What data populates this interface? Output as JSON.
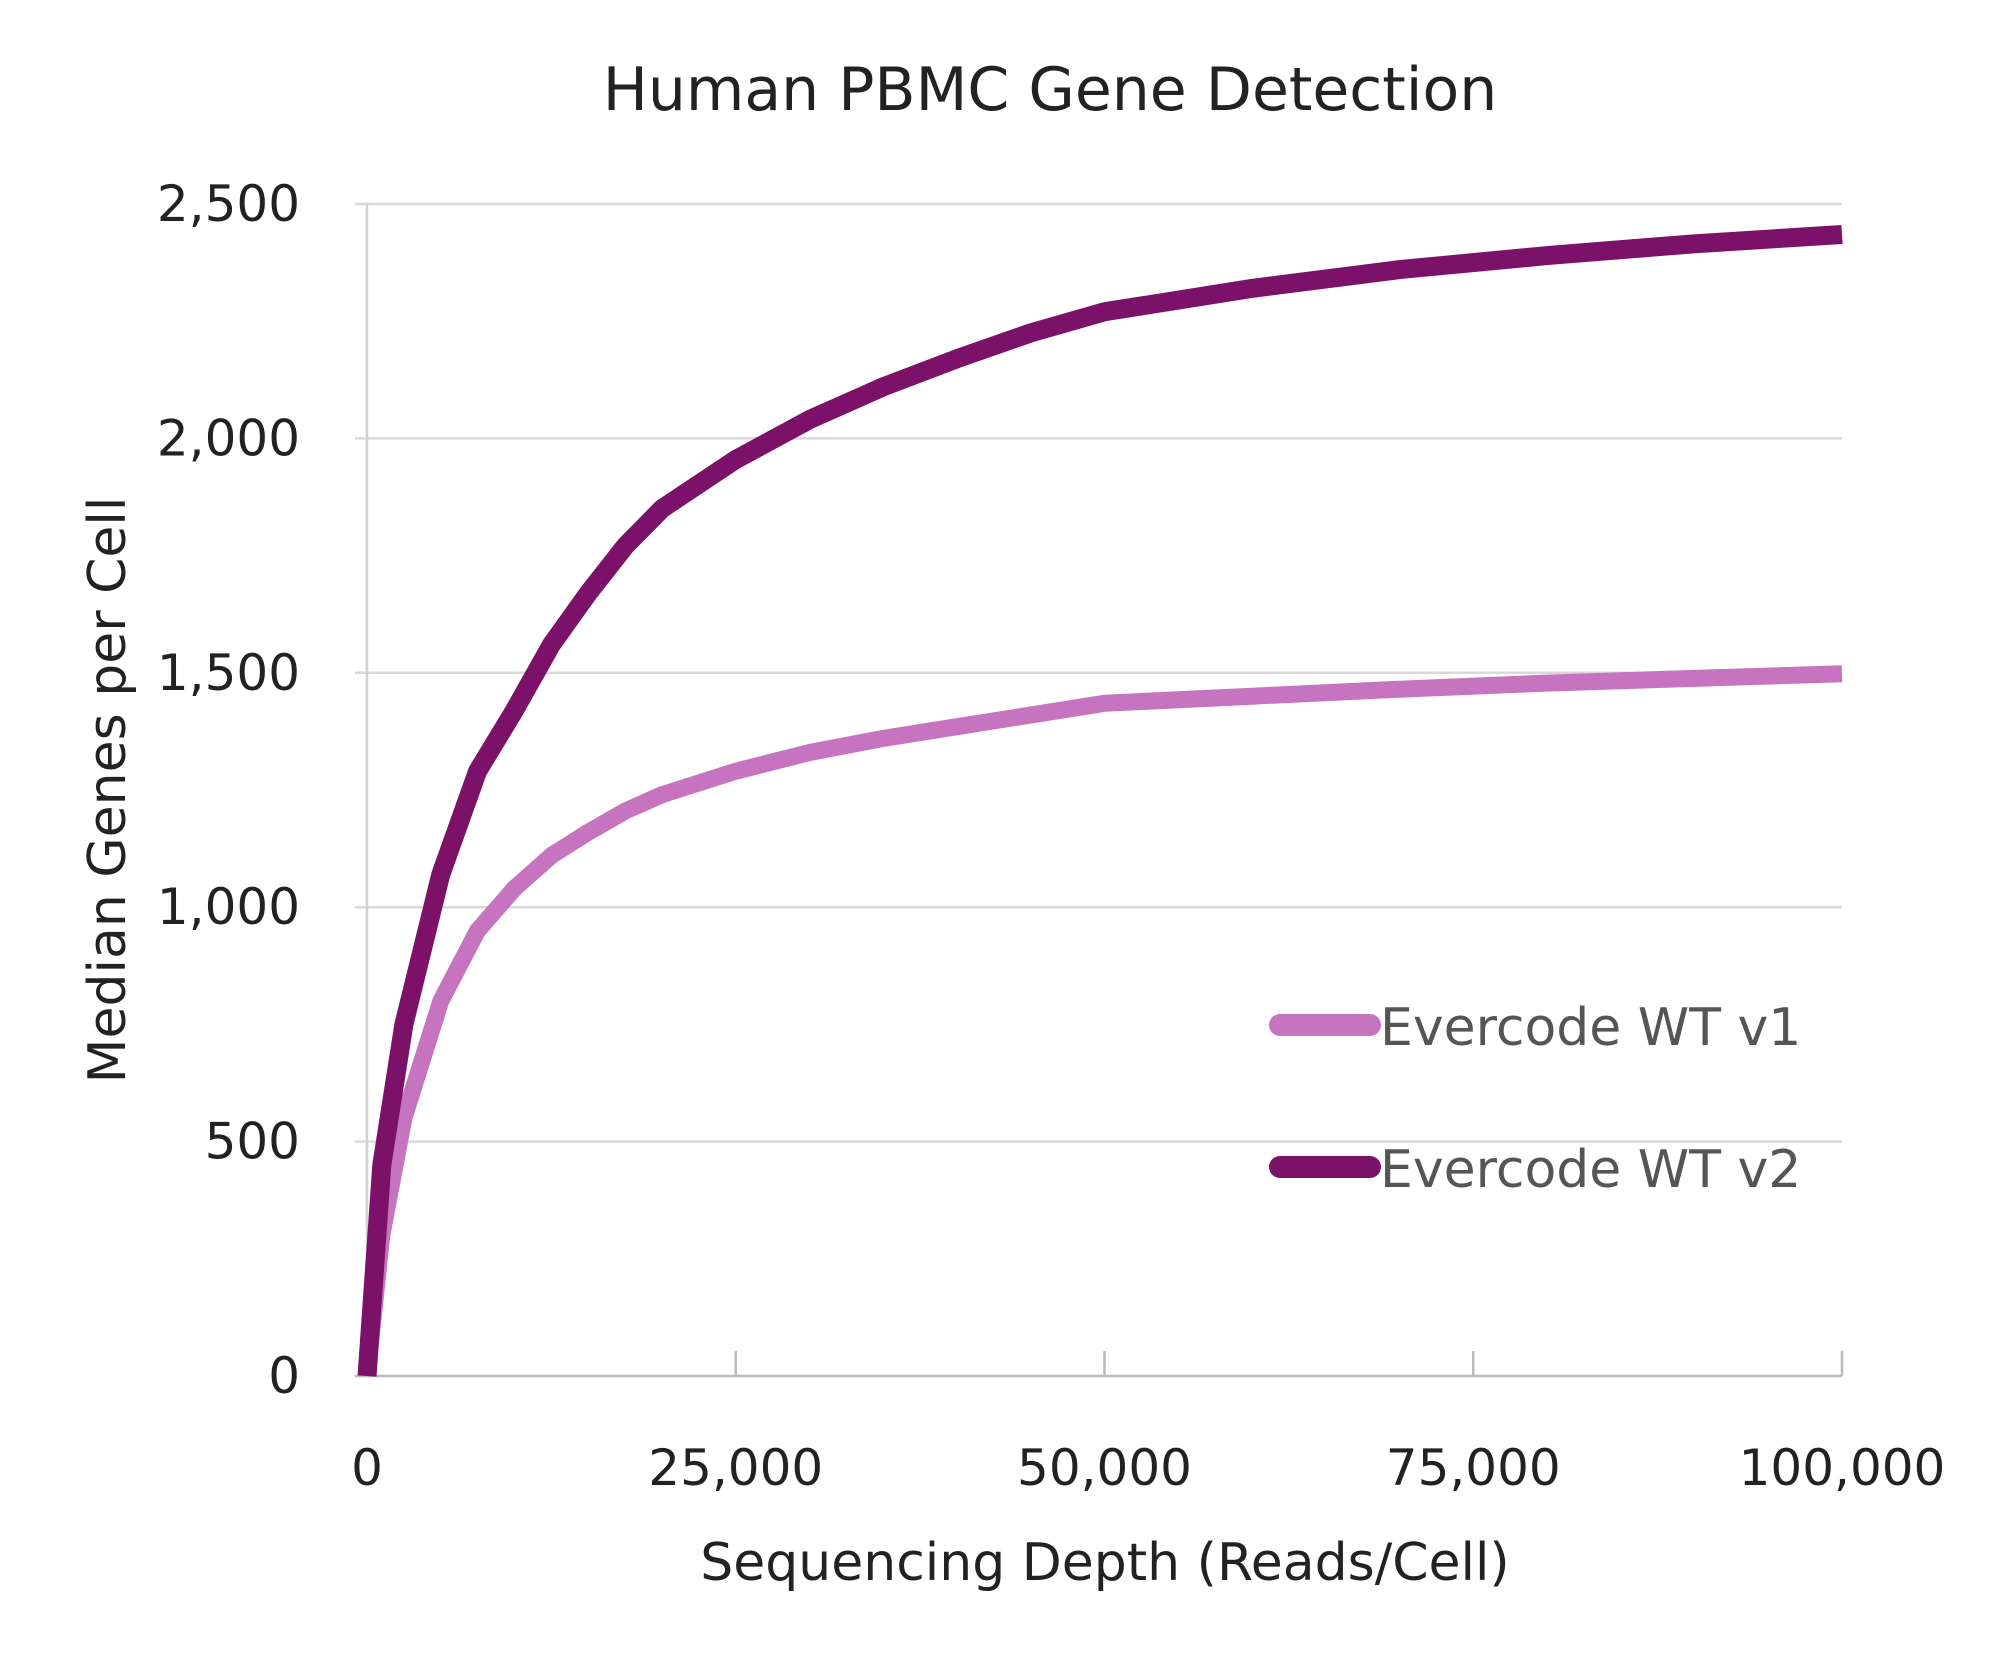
{
  "chart_data": {
    "type": "line",
    "title": "Human PBMC Gene Detection",
    "xlabel": "Sequencing Depth (Reads/Cell)",
    "ylabel": "Median Genes per Cell",
    "xlim": [
      0,
      100000
    ],
    "ylim": [
      0,
      2500
    ],
    "xticks": [
      0,
      25000,
      50000,
      75000,
      100000
    ],
    "xtick_labels": [
      "0",
      "25,000",
      "50,000",
      "75,000",
      "100,000"
    ],
    "yticks": [
      0,
      500,
      1000,
      1500,
      2000,
      2500
    ],
    "ytick_labels": [
      "0",
      "500",
      "1,000",
      "1,500",
      "2,000",
      "2,500"
    ],
    "grid": "horizontal",
    "legend_position": "right",
    "series": [
      {
        "name": "Evercode WT v1",
        "color": "#c774c0",
        "x": [
          0,
          1000,
          2500,
          5000,
          7500,
          10000,
          12500,
          15000,
          17500,
          20000,
          25000,
          30000,
          35000,
          40000,
          50000,
          60000,
          70000,
          80000,
          90000,
          100000
        ],
        "y": [
          0,
          300,
          550,
          800,
          950,
          1040,
          1110,
          1160,
          1205,
          1240,
          1290,
          1330,
          1360,
          1385,
          1435,
          1450,
          1465,
          1478,
          1488,
          1498
        ]
      },
      {
        "name": "Evercode WT v2",
        "color": "#7b1169",
        "x": [
          0,
          1000,
          2500,
          5000,
          7500,
          10000,
          12500,
          15000,
          17500,
          20000,
          25000,
          30000,
          35000,
          40000,
          45000,
          50000,
          60000,
          70000,
          80000,
          90000,
          100000
        ],
        "y": [
          0,
          450,
          750,
          1070,
          1290,
          1420,
          1560,
          1670,
          1770,
          1850,
          1955,
          2040,
          2110,
          2170,
          2225,
          2270,
          2320,
          2360,
          2390,
          2415,
          2435
        ]
      }
    ]
  }
}
